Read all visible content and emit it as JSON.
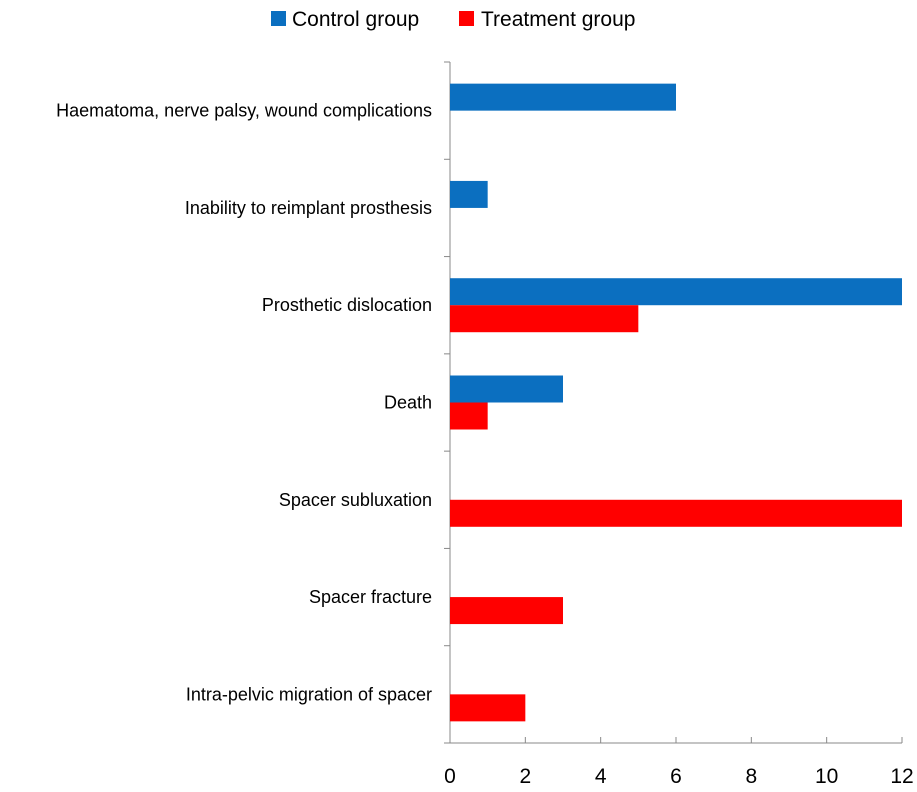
{
  "chart_data": {
    "type": "bar",
    "orientation": "horizontal",
    "categories": [
      "Haematoma, nerve palsy, wound complications",
      "Inability to reimplant prosthesis",
      "Prosthetic dislocation",
      "Death",
      "Spacer subluxation",
      "Spacer fracture",
      "Intra-pelvic migration of spacer"
    ],
    "series": [
      {
        "name": "Control group",
        "color": "#0b6fc0",
        "values": [
          6,
          1,
          12,
          3,
          0,
          0,
          0
        ]
      },
      {
        "name": "Treatment group",
        "color": "#ff0000",
        "values": [
          0,
          0,
          5,
          1,
          12,
          3,
          2
        ]
      }
    ],
    "xlim": [
      0,
      12
    ],
    "xticks": [
      0,
      2,
      4,
      6,
      8,
      10,
      12
    ],
    "xlabel": "",
    "ylabel": "",
    "title": "",
    "grid": false,
    "legend_position": "top"
  }
}
